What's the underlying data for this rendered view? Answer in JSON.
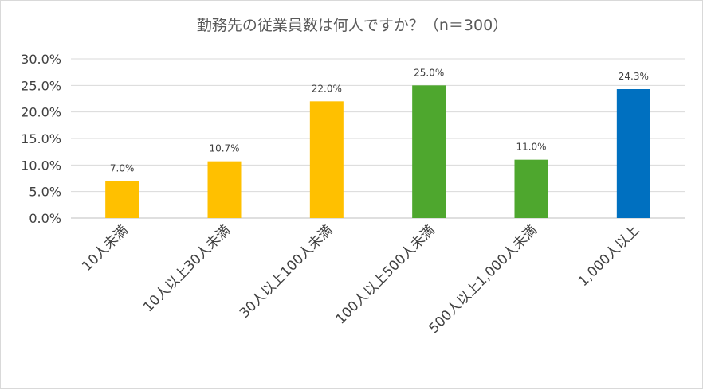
{
  "chart_data": {
    "type": "bar",
    "title": "勤務先の従業員数は何人ですか？（n＝300）",
    "categories": [
      "10人未満",
      "10人以上30人未満",
      "30人以上100人未満",
      "100人以上500人未満",
      "500人以上1,000人未満",
      "1,000人以上"
    ],
    "values": [
      7.0,
      10.7,
      22.0,
      25.0,
      11.0,
      24.3
    ],
    "data_labels": [
      "7.0%",
      "10.7%",
      "22.0%",
      "25.0%",
      "11.0%",
      "24.3%"
    ],
    "bar_colors": [
      "#FFC000",
      "#FFC000",
      "#FFC000",
      "#4EA72E",
      "#4EA72E",
      "#0070C0"
    ],
    "y_ticks": [
      "0.0%",
      "5.0%",
      "10.0%",
      "15.0%",
      "20.0%",
      "25.0%",
      "30.0%"
    ],
    "ylim": [
      0,
      30
    ],
    "grid": true,
    "legend": "none"
  }
}
